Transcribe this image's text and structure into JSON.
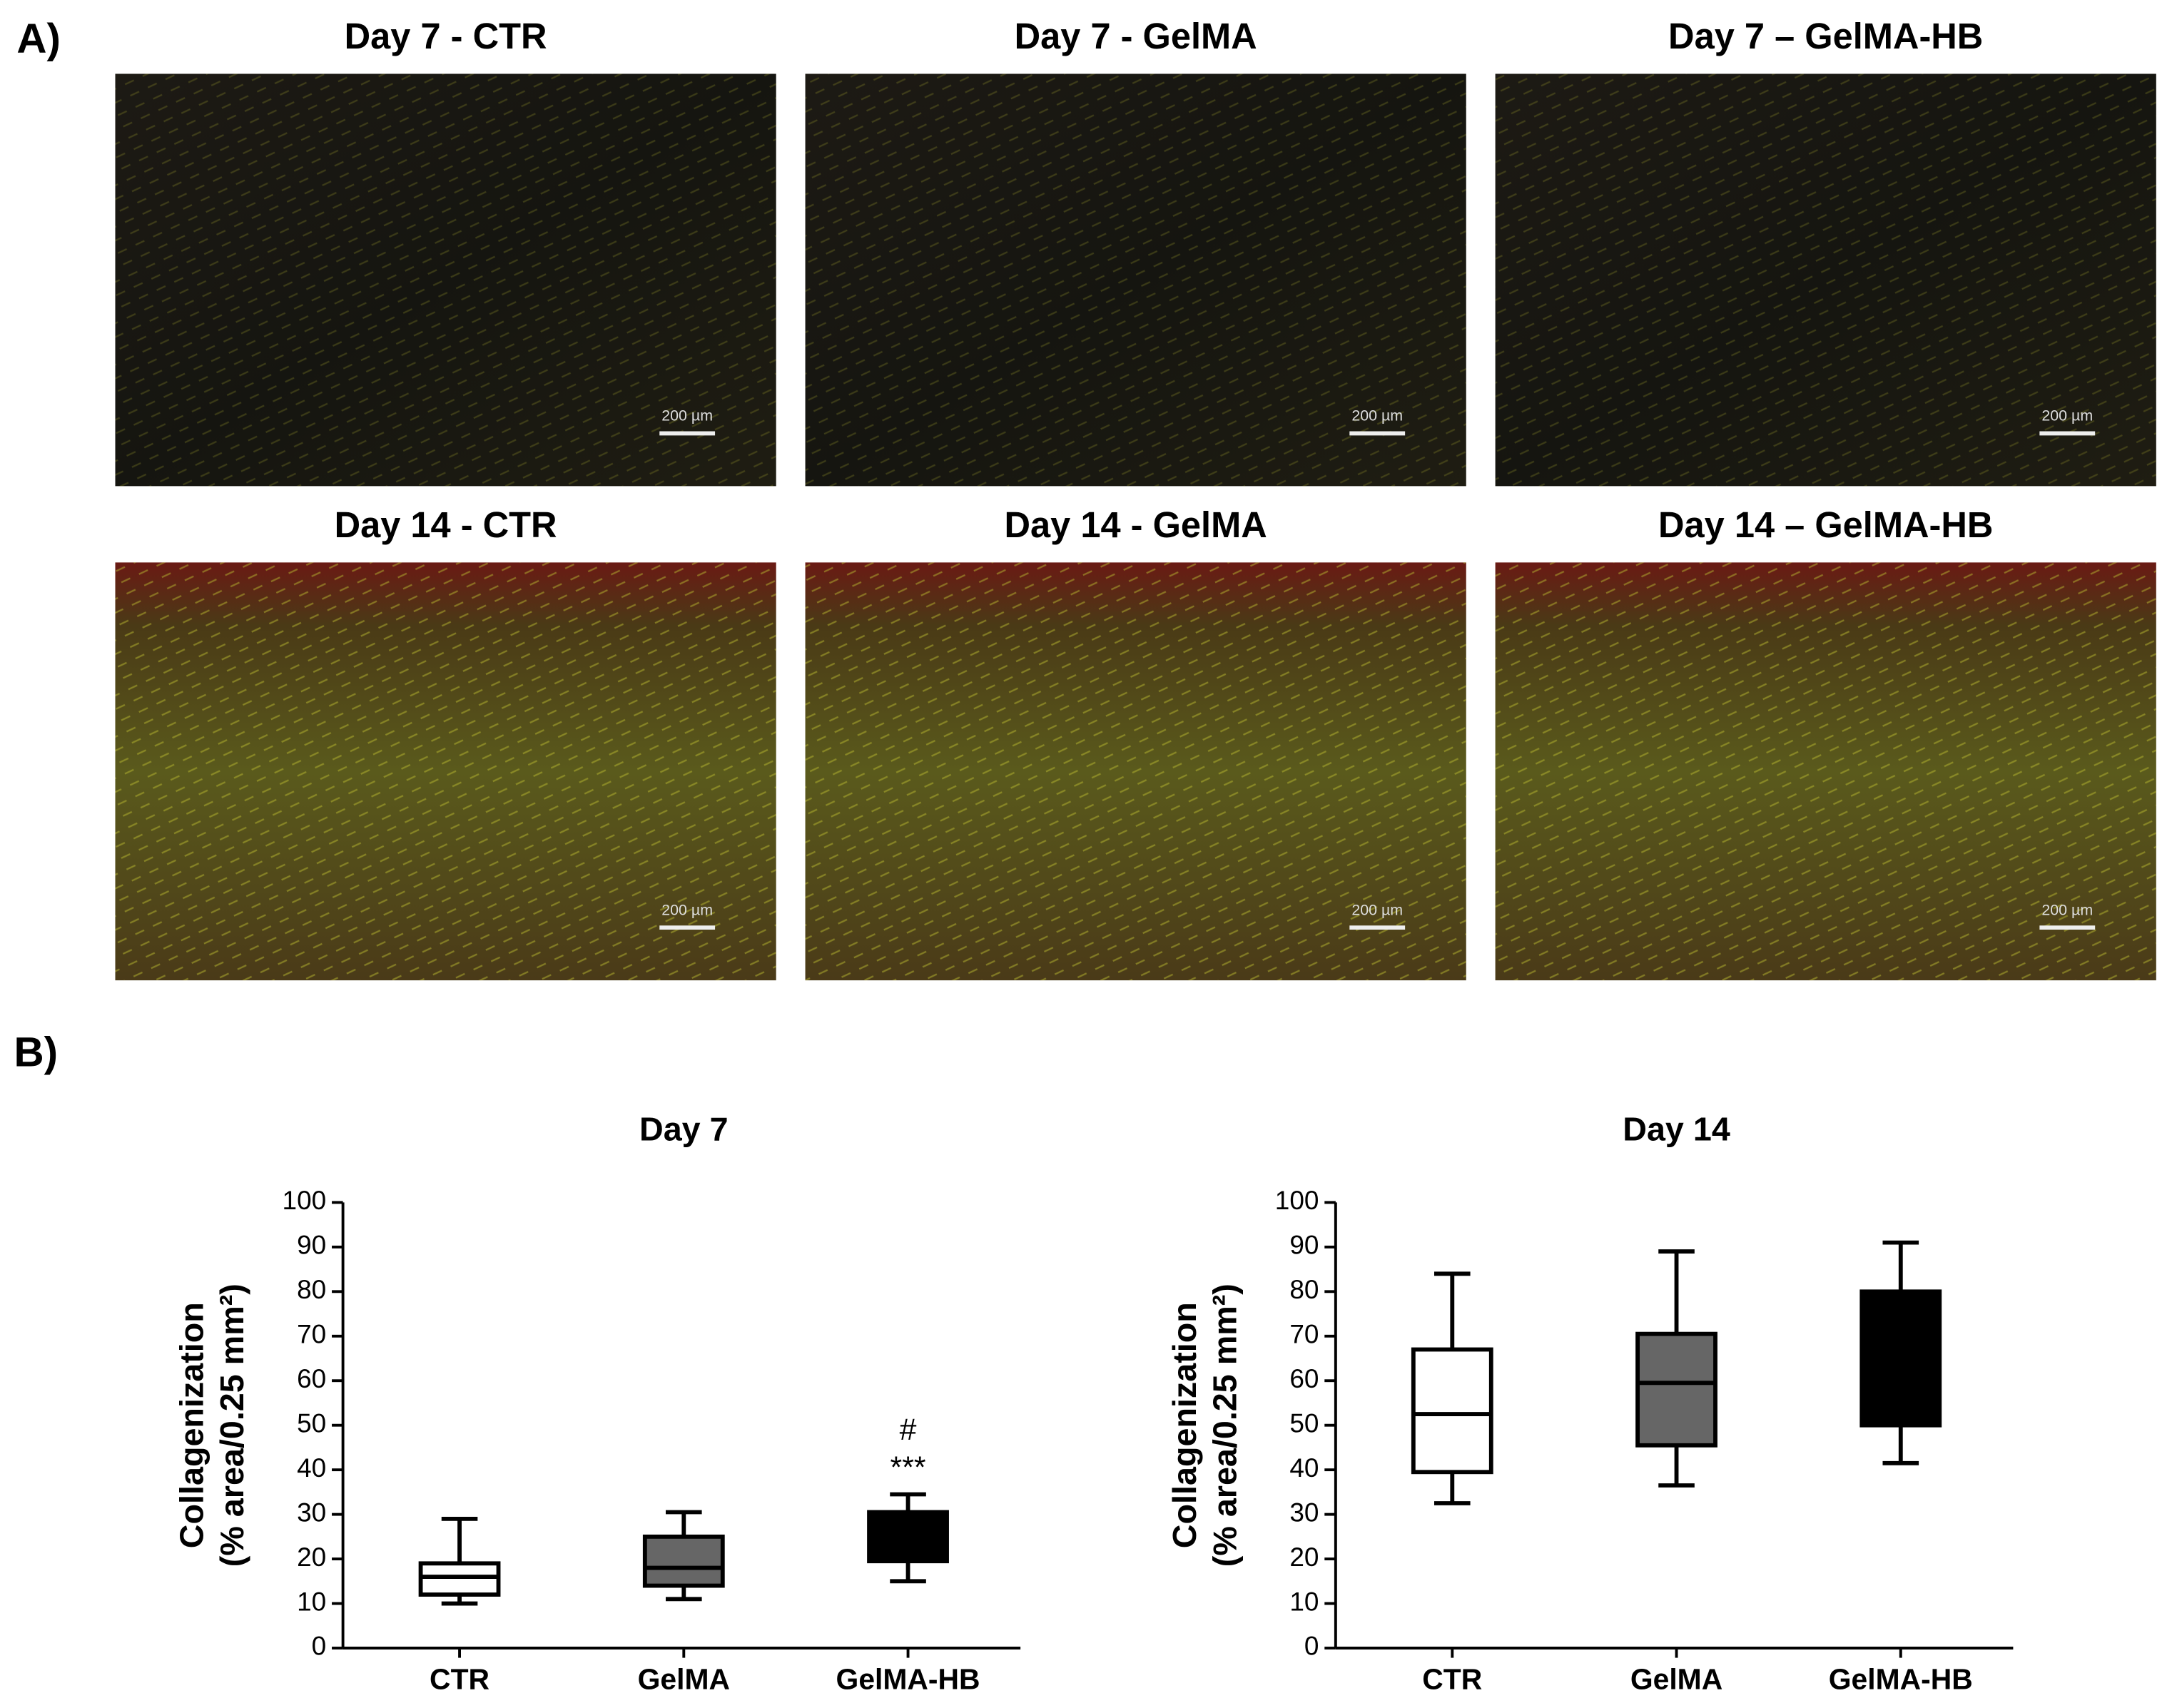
{
  "panel_labels": [
    "A)",
    "B)"
  ],
  "images": [
    {
      "caption": "Day 7 - CTR",
      "scale_bar": "200 µm"
    },
    {
      "caption": "Day 7 - GelMA",
      "scale_bar": "200 µm"
    },
    {
      "caption": "Day 7 – GelMA-HB",
      "scale_bar": "200 µm"
    },
    {
      "caption": "Day 14 - CTR",
      "scale_bar": "200 µm"
    },
    {
      "caption": "Day 14 - GelMA",
      "scale_bar": "200 µm"
    },
    {
      "caption": "Day 14 – GelMA-HB",
      "scale_bar": "200 µm"
    }
  ],
  "chart_data": [
    {
      "type": "box",
      "title": "Day 7",
      "y_label": [
        "Collagenization",
        "(% area/0.25 mm²)"
      ],
      "categories": [
        "CTR",
        "GelMA",
        "GelMA-HB"
      ],
      "boxes": [
        {
          "min": 10,
          "q1": 12,
          "median": 16,
          "q3": 19,
          "max": 29,
          "color": "#ffffff"
        },
        {
          "min": 11,
          "q1": 14,
          "median": 18,
          "q3": 25,
          "max": 30.5,
          "color": "#666666"
        },
        {
          "min": 15,
          "q1": 19.5,
          "median": 25,
          "q3": 30.5,
          "max": 34.5,
          "color": "#000000"
        }
      ],
      "annotations": [
        {
          "category": "GelMA-HB",
          "text": "#"
        },
        {
          "category": "GelMA-HB",
          "text": "***"
        }
      ],
      "ylim": [
        0,
        100
      ],
      "yticks": [
        0,
        10,
        20,
        30,
        40,
        50,
        60,
        70,
        80,
        90,
        100
      ],
      "grid": false
    },
    {
      "type": "box",
      "title": "Day 14",
      "y_label": [
        "Collagenization",
        "(% area/0.25 mm²)"
      ],
      "categories": [
        "CTR",
        "GelMA",
        "GelMA-HB"
      ],
      "boxes": [
        {
          "min": 32.5,
          "q1": 39.5,
          "median": 52.5,
          "q3": 67,
          "max": 84,
          "color": "#ffffff"
        },
        {
          "min": 36.5,
          "q1": 45.5,
          "median": 59.5,
          "q3": 70.5,
          "max": 89,
          "color": "#666666"
        },
        {
          "min": 41.5,
          "q1": 50,
          "median": 65,
          "q3": 80,
          "max": 91,
          "color": "#000000"
        }
      ],
      "annotations": [],
      "ylim": [
        0,
        100
      ],
      "yticks": [
        0,
        10,
        20,
        30,
        40,
        50,
        60,
        70,
        80,
        90,
        100
      ],
      "grid": false
    }
  ]
}
